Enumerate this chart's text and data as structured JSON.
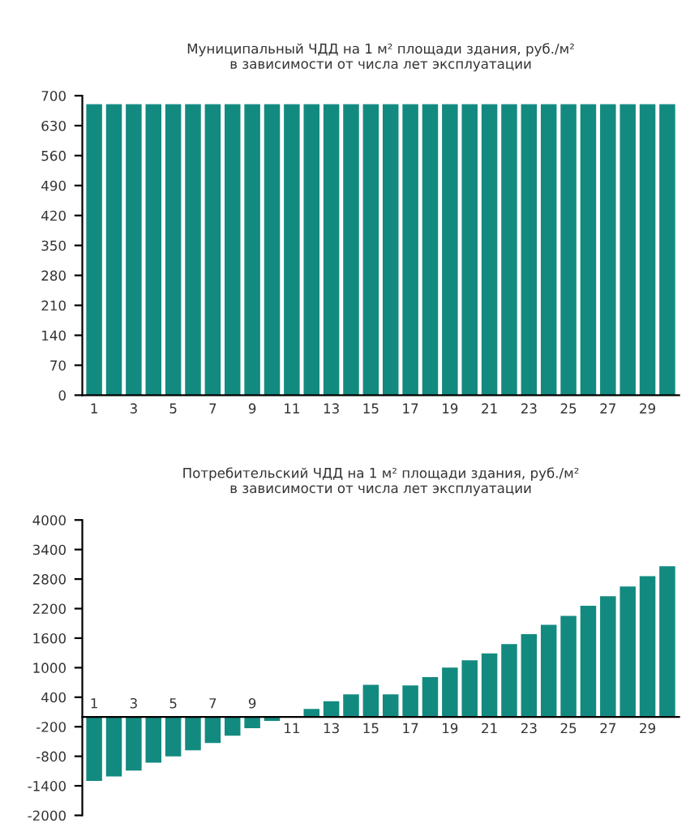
{
  "chart_data": [
    {
      "type": "bar",
      "title": "Муниципальный ЧДД на 1 м² площади здания, руб./м²\nв зависимости от числа лет эксплуатации",
      "categories": [
        "1",
        null,
        "3",
        null,
        "5",
        null,
        "7",
        null,
        "9",
        null,
        "11",
        null,
        "13",
        null,
        "15",
        null,
        "17",
        null,
        "19",
        null,
        "21",
        null,
        "23",
        null,
        "25",
        null,
        "27",
        null,
        "29",
        null
      ],
      "values": [
        680,
        680,
        680,
        680,
        680,
        680,
        680,
        680,
        680,
        680,
        680,
        680,
        680,
        680,
        680,
        680,
        680,
        680,
        680,
        680,
        680,
        680,
        680,
        680,
        680,
        680,
        680,
        680,
        680,
        680
      ],
      "color": "#138a80",
      "ylim": [
        0,
        700
      ],
      "yticks": [
        0,
        70,
        140,
        210,
        280,
        350,
        420,
        490,
        560,
        630,
        700
      ],
      "grid": false
    },
    {
      "type": "bar",
      "title": "Потребительский ЧДД на 1 м² площади здания, руб./м²\nв зависимости от числа лет эксплуатации",
      "categories": [
        "1",
        null,
        "3",
        null,
        "5",
        null,
        "7",
        null,
        "9",
        null,
        "11",
        null,
        "13",
        null,
        "15",
        null,
        "17",
        null,
        "19",
        null,
        "21",
        null,
        "23",
        null,
        "25",
        null,
        "27",
        null,
        "29",
        null
      ],
      "values": [
        -1300,
        -1210,
        -1090,
        -930,
        -800,
        -680,
        -530,
        -380,
        -230,
        -80,
        null,
        160,
        320,
        460,
        650,
        460,
        640,
        810,
        1000,
        1150,
        1290,
        1480,
        1680,
        1870,
        2050,
        2260,
        2450,
        2650,
        2860,
        3060
      ],
      "color": "#138a80",
      "ylim": [
        -2000,
        4000
      ],
      "yticks": [
        -2000,
        -1400,
        -800,
        -200,
        400,
        1000,
        1600,
        2200,
        2800,
        3400,
        4000
      ],
      "grid": false
    }
  ]
}
